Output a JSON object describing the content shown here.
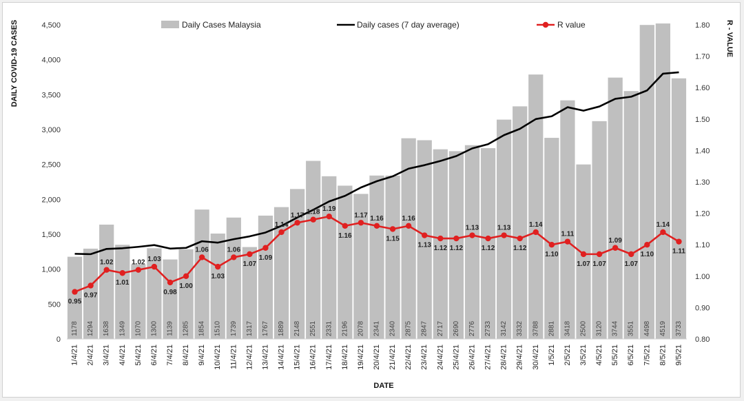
{
  "chart_data": {
    "type": "bar",
    "title": "",
    "xlabel": "DATE",
    "ylabel": "DAILY COVID-19 CASES",
    "y2label": "R - VALUE",
    "ylim": [
      0,
      4500
    ],
    "y2lim": [
      0.8,
      1.8
    ],
    "yticks": [
      "0",
      "500",
      "1,000",
      "1,500",
      "2,000",
      "2,500",
      "3,000",
      "3,500",
      "4,000",
      "4,500"
    ],
    "y2ticks": [
      "0.80",
      "0.90",
      "1.00",
      "1.10",
      "1.20",
      "1.30",
      "1.40",
      "1.50",
      "1.60",
      "1.70",
      "1.80"
    ],
    "grid": false,
    "legend_position": "top",
    "categories": [
      "1/4/21",
      "2/4/21",
      "3/4/21",
      "4/4/21",
      "5/4/21",
      "6/4/21",
      "7/4/21",
      "8/4/21",
      "9/4/21",
      "10/4/21",
      "11/4/21",
      "12/4/21",
      "13/4/21",
      "14/4/21",
      "15/4/21",
      "16/4/21",
      "17/4/21",
      "18/4/21",
      "19/4/21",
      "20/4/21",
      "21/4/21",
      "22/4/21",
      "23/4/21",
      "24/4/21",
      "25/4/21",
      "26/4/21",
      "27/4/21",
      "28/4/21",
      "29/4/21",
      "30/4/21",
      "1/5/21",
      "2/5/21",
      "3/5/21",
      "4/5/21",
      "5/5/21",
      "6/5/21",
      "7/5/21",
      "8/5/21",
      "9/5/21"
    ],
    "series": [
      {
        "name": "Daily Cases Malaysia",
        "type": "bar",
        "axis": "left",
        "color": "#bfbfbf",
        "values": [
          1178,
          1294,
          1638,
          1349,
          1070,
          1300,
          1139,
          1285,
          1854,
          1510,
          1739,
          1317,
          1767,
          1889,
          2148,
          2551,
          2331,
          2196,
          2078,
          2341,
          2340,
          2875,
          2847,
          2717,
          2690,
          2776,
          2733,
          3142,
          3332,
          3788,
          2881,
          3418,
          2500,
          3120,
          3744,
          3551,
          4498,
          4519,
          3733
        ],
        "value_labels": [
          "1178",
          "1294",
          "1638",
          "1349",
          "1070",
          "1300",
          "1139",
          "1285",
          "1854",
          "1510",
          "1739",
          "1317",
          "1767",
          "1889",
          "2148",
          "2551",
          "2331",
          "2196",
          "2078",
          "2341",
          "2340",
          "2875",
          "2847",
          "2717",
          "2690",
          "2776",
          "2733",
          "3142",
          "3332",
          "3788",
          "2881",
          "3418",
          "2500",
          "3120",
          "3744",
          "3551",
          "4498",
          "4519",
          "3733"
        ]
      },
      {
        "name": "Daily cases (7 day average)",
        "type": "line",
        "axis": "left",
        "color": "#000000",
        "values": [
          1220,
          1215,
          1290,
          1300,
          1320,
          1345,
          1295,
          1305,
          1400,
          1380,
          1430,
          1470,
          1525,
          1620,
          1740,
          1850,
          1970,
          2050,
          2170,
          2260,
          2330,
          2440,
          2490,
          2550,
          2620,
          2730,
          2790,
          2920,
          3010,
          3150,
          3190,
          3320,
          3270,
          3330,
          3440,
          3470,
          3560,
          3800,
          3820
        ]
      },
      {
        "name": "R value",
        "type": "line",
        "axis": "right",
        "color": "#e02020",
        "values": [
          0.95,
          0.97,
          1.02,
          1.01,
          1.02,
          1.03,
          0.98,
          1.0,
          1.06,
          1.03,
          1.06,
          1.07,
          1.09,
          1.14,
          1.17,
          1.18,
          1.19,
          1.16,
          1.17,
          1.16,
          1.15,
          1.16,
          1.13,
          1.12,
          1.12,
          1.13,
          1.12,
          1.13,
          1.12,
          1.14,
          1.1,
          1.11,
          1.07,
          1.07,
          1.09,
          1.07,
          1.1,
          1.14,
          1.11
        ],
        "value_labels": [
          "0.95",
          "0.97",
          "1.02",
          "1.01",
          "1.02",
          "1.03",
          "0.98",
          "1.00",
          "1.06",
          "1.03",
          "1.06",
          "1.07",
          "1.09",
          "1.14",
          "1.17",
          "1.18",
          "1.19",
          "1.16",
          "1.17",
          "1.16",
          "1.15",
          "1.16",
          "1.13",
          "1.12",
          "1.12",
          "1.13",
          "1.12",
          "1.13",
          "1.12",
          "1.14",
          "1.10",
          "1.11",
          "1.07",
          "1.07",
          "1.09",
          "1.07",
          "1.10",
          "1.14",
          "1.11"
        ]
      }
    ]
  }
}
